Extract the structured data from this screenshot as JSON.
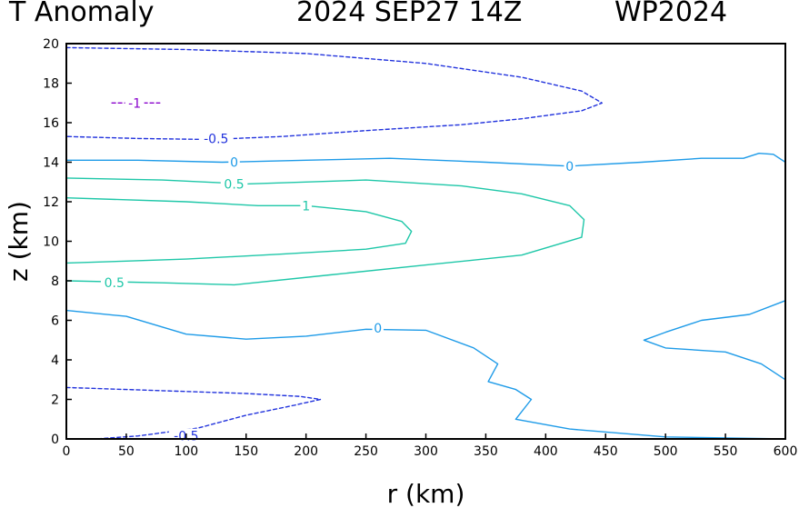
{
  "title": {
    "left": "T Anomaly",
    "date": "2024 SEP27 14Z",
    "storm": "WP2024"
  },
  "chart_data": {
    "type": "contour",
    "xlabel": "r (km)",
    "ylabel": "z (km)",
    "xlim": [
      0,
      600
    ],
    "ylim": [
      0,
      20
    ],
    "xticks": [
      0,
      50,
      100,
      150,
      200,
      250,
      300,
      350,
      400,
      450,
      500,
      550,
      600
    ],
    "yticks": [
      0,
      2,
      4,
      6,
      8,
      10,
      12,
      14,
      16,
      18,
      20
    ],
    "grid": false,
    "colors": {
      "negative_0_5": "#2233dd",
      "negative_1": "#8800cc",
      "zero": "#1e9be8",
      "positive": "#1ec7a8"
    },
    "contours": [
      {
        "level": -0.5,
        "color": "negative_0_5",
        "dashed": true,
        "points": [
          [
            0,
            19.8
          ],
          [
            100,
            19.7
          ],
          [
            200,
            19.5
          ],
          [
            300,
            19.0
          ],
          [
            380,
            18.3
          ],
          [
            430,
            17.6
          ],
          [
            447,
            17.0
          ],
          [
            430,
            16.6
          ],
          [
            380,
            16.2
          ],
          [
            330,
            15.9
          ],
          [
            250,
            15.6
          ],
          [
            180,
            15.3
          ],
          [
            120,
            15.15
          ],
          [
            60,
            15.2
          ],
          [
            0,
            15.3
          ]
        ],
        "labels": [
          {
            "text": "-0.5",
            "x": 125,
            "y": 15.2
          }
        ]
      },
      {
        "level": -1,
        "color": "negative_1",
        "dashed": true,
        "points": [
          [
            38,
            17.0
          ],
          [
            78,
            17.0
          ]
        ],
        "labels": [
          {
            "text": "-1",
            "x": 57,
            "y": 17.0
          }
        ]
      },
      {
        "level": 0,
        "color": "zero",
        "dashed": false,
        "points": [
          [
            0,
            14.1
          ],
          [
            60,
            14.1
          ],
          [
            130,
            14.0
          ],
          [
            200,
            14.1
          ],
          [
            270,
            14.2
          ],
          [
            350,
            14.0
          ],
          [
            420,
            13.8
          ],
          [
            480,
            14.0
          ],
          [
            530,
            14.2
          ],
          [
            565,
            14.2
          ],
          [
            578,
            14.45
          ],
          [
            590,
            14.4
          ],
          [
            600,
            14.0
          ]
        ],
        "labels": [
          {
            "text": "0",
            "x": 140,
            "y": 14.0
          },
          {
            "text": "0",
            "x": 420,
            "y": 13.8
          }
        ]
      },
      {
        "level": 0.5,
        "color": "positive",
        "dashed": false,
        "points": [
          [
            0,
            13.2
          ],
          [
            80,
            13.1
          ],
          [
            150,
            12.9
          ],
          [
            250,
            13.1
          ],
          [
            330,
            12.8
          ],
          [
            380,
            12.4
          ],
          [
            420,
            11.8
          ],
          [
            432,
            11.1
          ],
          [
            430,
            10.2
          ],
          [
            380,
            9.3
          ],
          [
            300,
            8.8
          ],
          [
            220,
            8.3
          ],
          [
            140,
            7.8
          ],
          [
            80,
            7.9
          ],
          [
            0,
            8.0
          ]
        ],
        "labels": [
          {
            "text": "0.5",
            "x": 140,
            "y": 12.9
          },
          {
            "text": "0.5",
            "x": 40,
            "y": 7.9
          }
        ]
      },
      {
        "level": 1,
        "color": "positive",
        "dashed": false,
        "points": [
          [
            0,
            12.2
          ],
          [
            100,
            12.0
          ],
          [
            160,
            11.8
          ],
          [
            200,
            11.8
          ],
          [
            250,
            11.5
          ],
          [
            280,
            11.0
          ],
          [
            288,
            10.5
          ],
          [
            283,
            9.9
          ],
          [
            250,
            9.6
          ],
          [
            180,
            9.35
          ],
          [
            100,
            9.1
          ],
          [
            50,
            9.0
          ],
          [
            0,
            8.9
          ]
        ],
        "labels": [
          {
            "text": "1",
            "x": 200,
            "y": 11.8
          }
        ]
      },
      {
        "level": 0,
        "color": "zero",
        "dashed": false,
        "points": [
          [
            0,
            6.5
          ],
          [
            50,
            6.2
          ],
          [
            100,
            5.3
          ],
          [
            150,
            5.05
          ],
          [
            200,
            5.2
          ],
          [
            250,
            5.55
          ],
          [
            300,
            5.5
          ],
          [
            340,
            4.6
          ],
          [
            360,
            3.8
          ],
          [
            352,
            2.9
          ],
          [
            375,
            2.5
          ],
          [
            388,
            2.0
          ],
          [
            375,
            1.0
          ],
          [
            420,
            0.5
          ],
          [
            500,
            0.1
          ],
          [
            600,
            0.0
          ]
        ],
        "labels": [
          {
            "text": "0",
            "x": 260,
            "y": 5.6
          }
        ]
      },
      {
        "level": 0,
        "color": "zero",
        "dashed": false,
        "points": [
          [
            600,
            7.0
          ],
          [
            570,
            6.3
          ],
          [
            530,
            6.0
          ],
          [
            500,
            5.4
          ],
          [
            482,
            5.0
          ],
          [
            500,
            4.6
          ],
          [
            550,
            4.4
          ],
          [
            580,
            3.8
          ],
          [
            600,
            3.0
          ]
        ],
        "labels": []
      },
      {
        "level": -0.5,
        "color": "negative_0_5",
        "dashed": true,
        "points": [
          [
            0,
            2.6
          ],
          [
            50,
            2.5
          ],
          [
            100,
            2.4
          ],
          [
            150,
            2.3
          ],
          [
            195,
            2.15
          ],
          [
            212,
            2.0
          ],
          [
            190,
            1.7
          ],
          [
            150,
            1.2
          ],
          [
            110,
            0.55
          ],
          [
            60,
            0.15
          ],
          [
            25,
            0.0
          ]
        ],
        "labels": [
          {
            "text": "-0.5",
            "x": 100,
            "y": 0.15
          }
        ]
      }
    ]
  }
}
